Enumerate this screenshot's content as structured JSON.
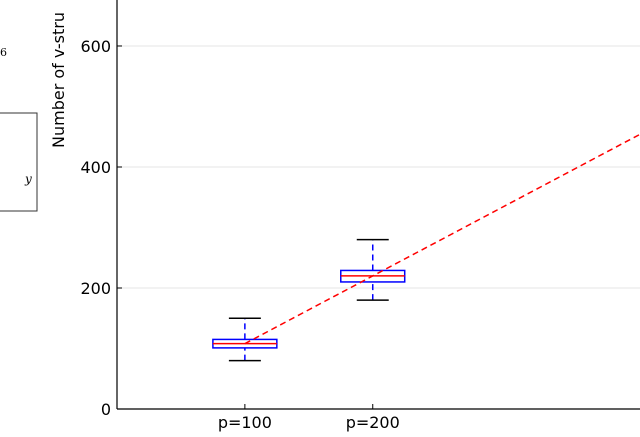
{
  "fragments": {
    "number": "6",
    "symbol": "y"
  },
  "chart_data": {
    "type": "box",
    "ylabel": "Number of v-stru",
    "xlim": [
      0,
      409
    ],
    "ylim": [
      0,
      676
    ],
    "xticks": [
      {
        "value": 100,
        "label": "p=100"
      },
      {
        "value": 200,
        "label": "p=200"
      }
    ],
    "yticks": [
      0,
      200,
      400,
      600
    ],
    "grid": true,
    "boxes": [
      {
        "x": 100,
        "whisker_low": 80,
        "q1": 101,
        "median": 108,
        "q3": 115,
        "whisker_high": 150
      },
      {
        "x": 200,
        "whisker_low": 180,
        "q1": 210,
        "median": 220,
        "q3": 229,
        "whisker_high": 280
      }
    ],
    "box_color": "#0000ff",
    "median_color": "#ff0000",
    "trend_line": {
      "x": [
        100,
        409
      ],
      "values": [
        108,
        454
      ],
      "color": "#ff0000"
    }
  }
}
